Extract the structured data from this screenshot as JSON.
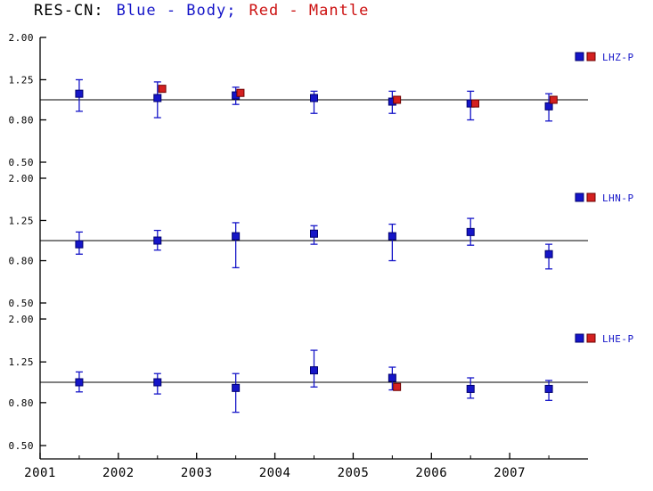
{
  "title": {
    "prefix": "RES-CN:",
    "segments": [
      {
        "text": "Blue - Body;",
        "color": "#1515c8"
      },
      {
        "text": "Red - Mantle",
        "color": "#cc1111"
      }
    ]
  },
  "colors": {
    "body": "#1515c8",
    "body_edge": "#00006e",
    "mantle": "#d42020",
    "mantle_edge": "#6e0000",
    "axis": "#000000",
    "reference_line": "#000000",
    "background": "#ffffff"
  },
  "xaxis": {
    "ticks": [
      "2001",
      "2002",
      "2003",
      "2004",
      "2005",
      "2006",
      "2007"
    ],
    "tick_values": [
      2001,
      2002,
      2003,
      2004,
      2005,
      2006,
      2007
    ],
    "min": 2001,
    "max": 2008,
    "minor_step": 0.5
  },
  "chart_data": [
    {
      "type": "scatter",
      "label": "LHZ-P",
      "y_scale": "log",
      "ylim": [
        0.5,
        2.0
      ],
      "yticks": [
        "2.00",
        "1.25",
        "0.80",
        "0.50"
      ],
      "ytick_values": [
        2.0,
        1.25,
        0.8,
        0.5
      ],
      "reference_y": 1.0,
      "legend": {
        "label": "LHZ-P",
        "swatches": [
          "body",
          "mantle"
        ]
      },
      "series": [
        {
          "name": "Body",
          "color": "body",
          "points": [
            {
              "x": 2001.5,
              "y": 1.07,
              "ylo": 0.88,
              "yhi": 1.25
            },
            {
              "x": 2002.5,
              "y": 1.02,
              "ylo": 0.82,
              "yhi": 1.22
            },
            {
              "x": 2003.5,
              "y": 1.05,
              "ylo": 0.95,
              "yhi": 1.15
            },
            {
              "x": 2004.5,
              "y": 1.02,
              "ylo": 0.86,
              "yhi": 1.1
            },
            {
              "x": 2005.5,
              "y": 0.98,
              "ylo": 0.86,
              "yhi": 1.1
            },
            {
              "x": 2006.5,
              "y": 0.96,
              "ylo": 0.8,
              "yhi": 1.1
            },
            {
              "x": 2007.5,
              "y": 0.93,
              "ylo": 0.79,
              "yhi": 1.07
            }
          ]
        },
        {
          "name": "Mantle",
          "color": "mantle",
          "points": [
            {
              "x": 2002.56,
              "y": 1.13
            },
            {
              "x": 2003.56,
              "y": 1.08
            },
            {
              "x": 2005.56,
              "y": 1.0
            },
            {
              "x": 2006.56,
              "y": 0.96
            },
            {
              "x": 2007.56,
              "y": 1.0
            }
          ]
        }
      ]
    },
    {
      "type": "scatter",
      "label": "LHN-P",
      "y_scale": "log",
      "ylim": [
        0.5,
        2.0
      ],
      "yticks": [
        "2.00",
        "1.25",
        "0.80",
        "0.50"
      ],
      "ytick_values": [
        2.0,
        1.25,
        0.8,
        0.5
      ],
      "reference_y": 1.0,
      "legend": {
        "label": "LHN-P",
        "swatches": [
          "body",
          "mantle"
        ]
      },
      "series": [
        {
          "name": "Body",
          "color": "body",
          "points": [
            {
              "x": 2001.5,
              "y": 0.96,
              "ylo": 0.86,
              "yhi": 1.1
            },
            {
              "x": 2002.5,
              "y": 1.0,
              "ylo": 0.9,
              "yhi": 1.12
            },
            {
              "x": 2003.5,
              "y": 1.05,
              "ylo": 0.74,
              "yhi": 1.22
            },
            {
              "x": 2004.5,
              "y": 1.08,
              "ylo": 0.96,
              "yhi": 1.18
            },
            {
              "x": 2005.5,
              "y": 1.05,
              "ylo": 0.8,
              "yhi": 1.2
            },
            {
              "x": 2006.5,
              "y": 1.1,
              "ylo": 0.95,
              "yhi": 1.28
            },
            {
              "x": 2007.5,
              "y": 0.86,
              "ylo": 0.73,
              "yhi": 0.96
            }
          ]
        },
        {
          "name": "Mantle",
          "color": "mantle",
          "points": []
        }
      ]
    },
    {
      "type": "scatter",
      "label": "LHE-P",
      "y_scale": "log",
      "ylim": [
        0.5,
        2.0
      ],
      "yticks": [
        "2.00",
        "1.25",
        "0.80",
        "0.50"
      ],
      "ytick_values": [
        2.0,
        1.25,
        0.8,
        0.5
      ],
      "reference_y": 1.0,
      "legend": {
        "label": "LHE-P",
        "swatches": [
          "body",
          "mantle"
        ]
      },
      "series": [
        {
          "name": "Body",
          "color": "body",
          "points": [
            {
              "x": 2001.5,
              "y": 1.0,
              "ylo": 0.9,
              "yhi": 1.12
            },
            {
              "x": 2002.5,
              "y": 1.0,
              "ylo": 0.88,
              "yhi": 1.1
            },
            {
              "x": 2003.5,
              "y": 0.94,
              "ylo": 0.72,
              "yhi": 1.1
            },
            {
              "x": 2004.5,
              "y": 1.14,
              "ylo": 0.95,
              "yhi": 1.42
            },
            {
              "x": 2005.5,
              "y": 1.05,
              "ylo": 0.92,
              "yhi": 1.18
            },
            {
              "x": 2006.5,
              "y": 0.93,
              "ylo": 0.84,
              "yhi": 1.05
            },
            {
              "x": 2007.5,
              "y": 0.93,
              "ylo": 0.82,
              "yhi": 1.02
            }
          ]
        },
        {
          "name": "Mantle",
          "color": "mantle",
          "points": [
            {
              "x": 2005.56,
              "y": 0.95
            }
          ]
        }
      ]
    }
  ]
}
